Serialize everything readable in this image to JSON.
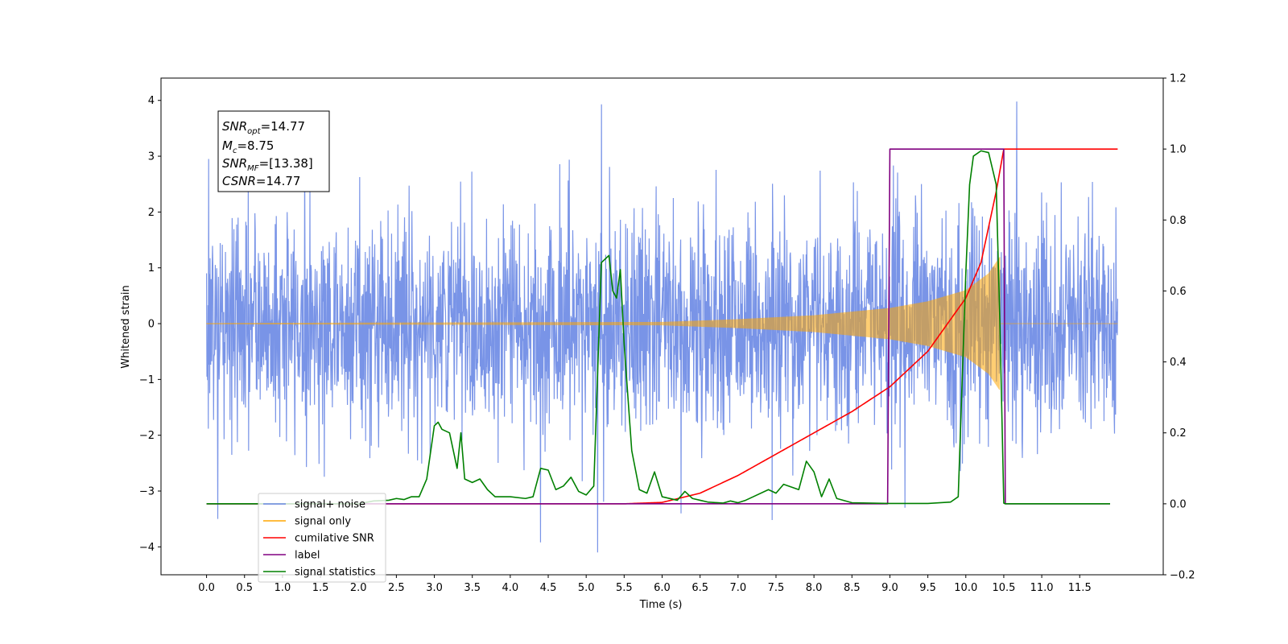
{
  "chart_data": {
    "type": "line",
    "xlabel": "Time (s)",
    "ylabel": "Whitened strain",
    "xlim": [
      -0.6,
      12.6
    ],
    "ylim_left": [
      -4.5,
      4.4
    ],
    "ylim_right": [
      -0.2,
      1.2
    ],
    "x_ticks": [
      "0.0",
      "0.5",
      "1.0",
      "1.5",
      "2.0",
      "2.5",
      "3.0",
      "3.5",
      "4.0",
      "4.5",
      "5.0",
      "5.5",
      "6.0",
      "6.5",
      "7.0",
      "7.5",
      "8.0",
      "8.5",
      "9.0",
      "9.5",
      "10.0",
      "10.5",
      "11.0",
      "11.5"
    ],
    "y_left_ticks": [
      "4",
      "3",
      "2",
      "1",
      "0",
      "−1",
      "−2",
      "−3",
      "−4"
    ],
    "y_right_ticks": [
      "1.2",
      "1.0",
      "0.8",
      "0.6",
      "0.4",
      "0.2",
      "0.0",
      "−0.2"
    ],
    "info_box": {
      "snr_opt": {
        "label": "SNR",
        "sub": "opt",
        "value": "=14.77"
      },
      "mc": {
        "label": "M",
        "sub": "c",
        "value": "=8.75"
      },
      "snr_mf": {
        "label": "SNR",
        "sub": "MF",
        "value": "=[13.38]"
      },
      "csnr": {
        "label": "CSNR",
        "value": "=14.77"
      }
    },
    "series": [
      {
        "name": "signal+ noise",
        "color": "#6a88e4",
        "axis": "left",
        "kind": "noise",
        "x_range": [
          0.0,
          12.0
        ],
        "typical_amplitude": [
          -2.2,
          2.3
        ],
        "peaks": [
          [
            0.03,
            2.95
          ],
          [
            5.2,
            3.93
          ],
          [
            10.67,
            3.98
          ],
          [
            0.15,
            -3.5
          ],
          [
            5.15,
            -4.1
          ],
          [
            4.4,
            -3.92
          ],
          [
            9.2,
            -3.3
          ],
          [
            7.45,
            -3.52
          ],
          [
            6.25,
            -3.4
          ]
        ]
      },
      {
        "name": "signal only",
        "color": "#ffa500",
        "axis": "left",
        "kind": "chirp",
        "x": [
          0.0,
          6.0,
          7.0,
          8.0,
          9.0,
          9.5,
          10.0,
          10.3,
          10.45,
          10.5
        ],
        "envelope": [
          0.01,
          0.03,
          0.08,
          0.15,
          0.28,
          0.4,
          0.6,
          0.9,
          1.2,
          0.0
        ]
      },
      {
        "name": "cumilative SNR",
        "color": "#ff0000",
        "axis": "right",
        "x": [
          0.0,
          5.5,
          6.0,
          6.5,
          7.0,
          7.5,
          8.0,
          8.5,
          9.0,
          9.5,
          10.0,
          10.2,
          10.4,
          10.5,
          12.0
        ],
        "y": [
          0.0,
          0.0,
          0.004,
          0.03,
          0.08,
          0.14,
          0.2,
          0.26,
          0.33,
          0.43,
          0.58,
          0.68,
          0.88,
          1.0,
          1.0
        ]
      },
      {
        "name": "label",
        "color": "#800080",
        "axis": "right",
        "x": [
          0.0,
          8.97,
          9.0,
          10.5,
          10.52,
          11.9
        ],
        "y": [
          0.0,
          0.0,
          1.0,
          1.0,
          0.0,
          0.0
        ]
      },
      {
        "name": "signal statistics",
        "color": "#008000",
        "axis": "right",
        "x": [
          0.0,
          2.0,
          2.2,
          2.4,
          2.5,
          2.6,
          2.7,
          2.8,
          2.9,
          3.0,
          3.05,
          3.1,
          3.2,
          3.3,
          3.35,
          3.4,
          3.5,
          3.6,
          3.7,
          3.8,
          4.0,
          4.2,
          4.3,
          4.4,
          4.5,
          4.6,
          4.7,
          4.8,
          4.9,
          5.0,
          5.1,
          5.2,
          5.3,
          5.35,
          5.4,
          5.45,
          5.5,
          5.6,
          5.7,
          5.8,
          5.9,
          6.0,
          6.2,
          6.3,
          6.4,
          6.5,
          6.6,
          6.8,
          6.9,
          7.0,
          7.1,
          7.2,
          7.4,
          7.5,
          7.6,
          7.8,
          7.9,
          8.0,
          8.1,
          8.2,
          8.3,
          8.5,
          9.0,
          9.5,
          9.8,
          9.9,
          10.0,
          10.05,
          10.1,
          10.2,
          10.3,
          10.4,
          10.45,
          10.5,
          10.52,
          11.9
        ],
        "y": [
          0.0,
          0.0,
          0.008,
          0.01,
          0.015,
          0.012,
          0.02,
          0.02,
          0.07,
          0.22,
          0.23,
          0.21,
          0.2,
          0.1,
          0.2,
          0.07,
          0.06,
          0.07,
          0.04,
          0.02,
          0.02,
          0.015,
          0.02,
          0.1,
          0.095,
          0.04,
          0.05,
          0.075,
          0.035,
          0.025,
          0.05,
          0.68,
          0.7,
          0.6,
          0.58,
          0.66,
          0.45,
          0.15,
          0.04,
          0.03,
          0.09,
          0.02,
          0.01,
          0.035,
          0.015,
          0.01,
          0.005,
          0.002,
          0.008,
          0.003,
          0.01,
          0.02,
          0.04,
          0.03,
          0.055,
          0.04,
          0.12,
          0.09,
          0.02,
          0.07,
          0.015,
          0.003,
          0.001,
          0.001,
          0.005,
          0.02,
          0.65,
          0.9,
          0.98,
          0.995,
          0.99,
          0.9,
          0.5,
          0.002,
          0.0,
          0.0
        ]
      }
    ],
    "legend": {
      "placement": "lower-left",
      "entries": [
        {
          "label": "signal+ noise",
          "color": "#6a88e4"
        },
        {
          "label": "signal only",
          "color": "#ffa500"
        },
        {
          "label": "cumilative SNR",
          "color": "#ff0000"
        },
        {
          "label": "label",
          "color": "#800080"
        },
        {
          "label": "signal statistics",
          "color": "#008000"
        }
      ]
    }
  }
}
